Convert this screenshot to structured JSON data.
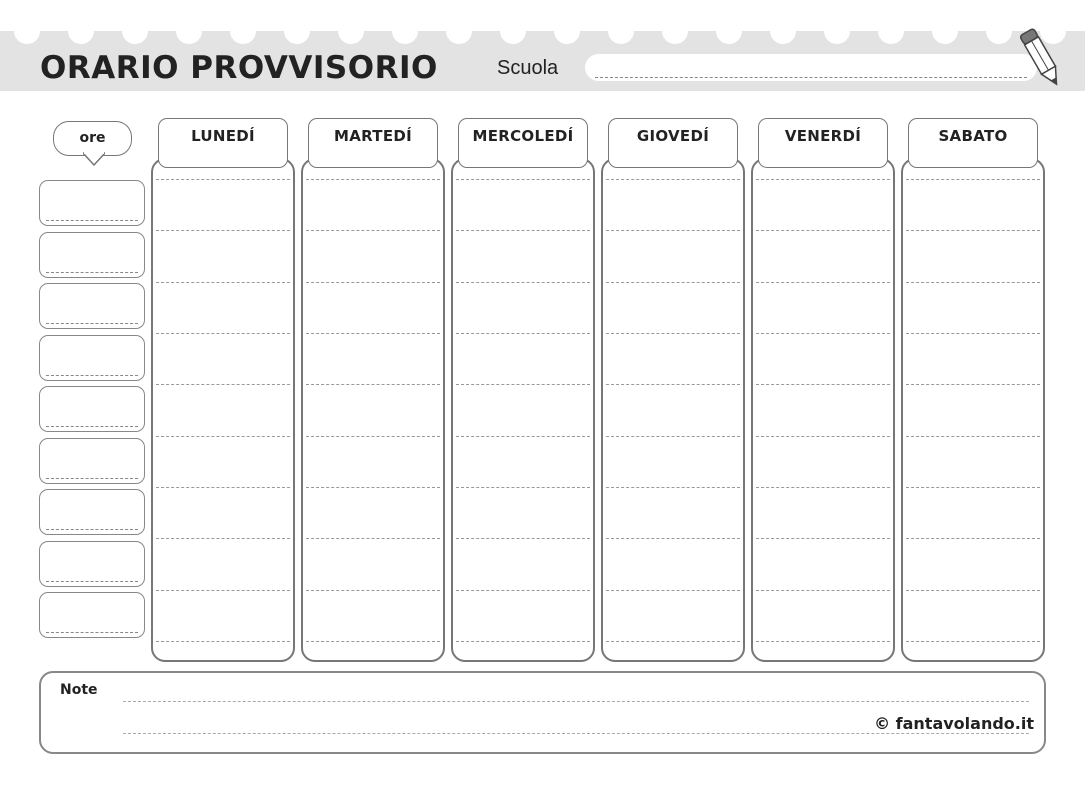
{
  "header": {
    "title": "ORARIO PROVVISORIO",
    "school_label": "Scuola",
    "school_value": ""
  },
  "ore_label": "ore",
  "days": [
    {
      "label": "LUNEDÍ"
    },
    {
      "label": "MARTEDÍ"
    },
    {
      "label": "MERCOLEDÍ"
    },
    {
      "label": "GIOVEDÍ"
    },
    {
      "label": "VENERDÍ"
    },
    {
      "label": "SABATO"
    }
  ],
  "hours": [
    "",
    "",
    "",
    "",
    "",
    "",
    "",
    "",
    ""
  ],
  "note": {
    "label": "Note",
    "value": ""
  },
  "copyright": "© fantavolando.it",
  "colors": {
    "banner": "#e3e3e3",
    "border": "#777777",
    "text": "#222222"
  }
}
